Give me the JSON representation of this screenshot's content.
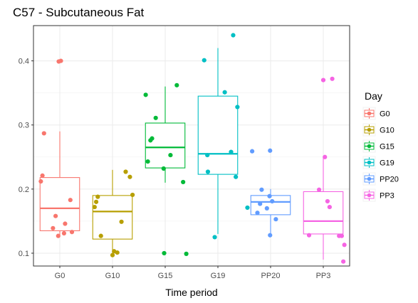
{
  "chart_data": {
    "type": "box",
    "title": "C57 - Subcutaneous Fat",
    "xlabel": "Time period",
    "ylabel": "",
    "ylim": [
      0.08,
      0.455
    ],
    "yticks": [
      0.1,
      0.2,
      0.3,
      0.4
    ],
    "grid": true,
    "legend": {
      "title": "Day",
      "position": "right"
    },
    "categories": [
      "G0",
      "G10",
      "G15",
      "G19",
      "PP20",
      "PP3"
    ],
    "series": [
      {
        "name": "G0",
        "color": "#F8766D",
        "box": {
          "lower_whisker": 0.128,
          "q1": 0.135,
          "median": 0.17,
          "q3": 0.218,
          "upper_whisker": 0.29
        },
        "points": [
          {
            "x_offset": 0.02,
            "y": 0.4
          },
          {
            "x_offset": -0.02,
            "y": 0.399
          },
          {
            "x_offset": -0.3,
            "y": 0.287
          },
          {
            "x_offset": -0.33,
            "y": 0.221
          },
          {
            "x_offset": -0.36,
            "y": 0.212
          },
          {
            "x_offset": 0.2,
            "y": 0.183
          },
          {
            "x_offset": -0.08,
            "y": 0.158
          },
          {
            "x_offset": 0.1,
            "y": 0.146
          },
          {
            "x_offset": -0.13,
            "y": 0.139
          },
          {
            "x_offset": 0.23,
            "y": 0.133
          },
          {
            "x_offset": 0.08,
            "y": 0.131
          },
          {
            "x_offset": -0.03,
            "y": 0.127
          }
        ]
      },
      {
        "name": "G10",
        "color": "#B79F00",
        "box": {
          "lower_whisker": 0.1,
          "q1": 0.122,
          "median": 0.165,
          "q3": 0.19,
          "upper_whisker": 0.23
        },
        "points": [
          {
            "x_offset": 0.25,
            "y": 0.227
          },
          {
            "x_offset": 0.33,
            "y": 0.219
          },
          {
            "x_offset": 0.38,
            "y": 0.191
          },
          {
            "x_offset": -0.28,
            "y": 0.188
          },
          {
            "x_offset": -0.31,
            "y": 0.18
          },
          {
            "x_offset": -0.34,
            "y": 0.172
          },
          {
            "x_offset": 0.17,
            "y": 0.149
          },
          {
            "x_offset": -0.22,
            "y": 0.127
          },
          {
            "x_offset": 0.03,
            "y": 0.103
          },
          {
            "x_offset": 0.09,
            "y": 0.101
          },
          {
            "x_offset": 0.0,
            "y": 0.097
          }
        ]
      },
      {
        "name": "G15",
        "color": "#00BA38",
        "box": {
          "lower_whisker": 0.21,
          "q1": 0.233,
          "median": 0.265,
          "q3": 0.303,
          "upper_whisker": 0.36
        },
        "points": [
          {
            "x_offset": 0.22,
            "y": 0.362
          },
          {
            "x_offset": -0.37,
            "y": 0.347
          },
          {
            "x_offset": -0.18,
            "y": 0.311
          },
          {
            "x_offset": -0.25,
            "y": 0.279
          },
          {
            "x_offset": -0.28,
            "y": 0.276
          },
          {
            "x_offset": 0.1,
            "y": 0.253
          },
          {
            "x_offset": -0.33,
            "y": 0.243
          },
          {
            "x_offset": -0.03,
            "y": 0.232
          },
          {
            "x_offset": 0.34,
            "y": 0.211
          },
          {
            "x_offset": -0.02,
            "y": 0.1
          },
          {
            "x_offset": 0.4,
            "y": 0.099
          }
        ]
      },
      {
        "name": "G19",
        "color": "#00BFC4",
        "box": {
          "lower_whisker": 0.13,
          "q1": 0.223,
          "median": 0.255,
          "q3": 0.345,
          "upper_whisker": 0.42
        },
        "points": [
          {
            "x_offset": 0.29,
            "y": 0.44
          },
          {
            "x_offset": -0.26,
            "y": 0.401
          },
          {
            "x_offset": 0.13,
            "y": 0.351
          },
          {
            "x_offset": 0.37,
            "y": 0.328
          },
          {
            "x_offset": 0.25,
            "y": 0.258
          },
          {
            "x_offset": -0.2,
            "y": 0.253
          },
          {
            "x_offset": -0.19,
            "y": 0.227
          },
          {
            "x_offset": 0.34,
            "y": 0.219
          },
          {
            "x_offset": 0.56,
            "y": 0.171
          },
          {
            "x_offset": -0.06,
            "y": 0.125
          }
        ]
      },
      {
        "name": "PP20",
        "color": "#619CFF",
        "box": {
          "lower_whisker": 0.128,
          "q1": 0.16,
          "median": 0.18,
          "q3": 0.19,
          "upper_whisker": 0.2
        },
        "points": [
          {
            "x_offset": -0.35,
            "y": 0.259
          },
          {
            "x_offset": -0.01,
            "y": 0.26
          },
          {
            "x_offset": -0.17,
            "y": 0.199
          },
          {
            "x_offset": -0.02,
            "y": 0.189
          },
          {
            "x_offset": 0.03,
            "y": 0.181
          },
          {
            "x_offset": -0.2,
            "y": 0.177
          },
          {
            "x_offset": -0.07,
            "y": 0.17
          },
          {
            "x_offset": -0.25,
            "y": 0.163
          },
          {
            "x_offset": 0.1,
            "y": 0.153
          },
          {
            "x_offset": -0.01,
            "y": 0.128
          }
        ]
      },
      {
        "name": "PP3",
        "color": "#F564E3",
        "box": {
          "lower_whisker": 0.09,
          "q1": 0.13,
          "median": 0.15,
          "q3": 0.196,
          "upper_whisker": 0.25
        },
        "points": [
          {
            "x_offset": 0.17,
            "y": 0.372
          },
          {
            "x_offset": 0.0,
            "y": 0.37
          },
          {
            "x_offset": 0.03,
            "y": 0.25
          },
          {
            "x_offset": -0.08,
            "y": 0.199
          },
          {
            "x_offset": 0.08,
            "y": 0.181
          },
          {
            "x_offset": 0.12,
            "y": 0.172
          },
          {
            "x_offset": -0.27,
            "y": 0.128
          },
          {
            "x_offset": 0.3,
            "y": 0.127
          },
          {
            "x_offset": 0.35,
            "y": 0.127
          },
          {
            "x_offset": 0.4,
            "y": 0.113
          },
          {
            "x_offset": 0.38,
            "y": 0.087
          }
        ]
      }
    ]
  }
}
